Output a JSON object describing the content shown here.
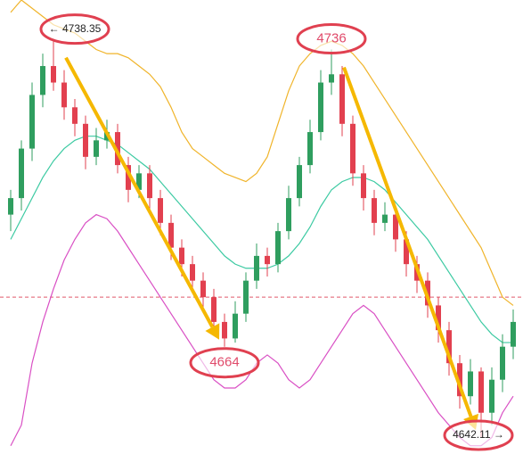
{
  "chart_data": {
    "type": "candlestick",
    "ylim": [
      4638,
      4748
    ],
    "open": [
      4696,
      4700,
      4712,
      4725,
      4732,
      4728,
      4722,
      4718,
      4710,
      4714,
      4716,
      4708,
      4702,
      4706,
      4700,
      4694,
      4688,
      4684,
      4680,
      4676,
      4670,
      4666,
      4672,
      4680,
      4686,
      4684,
      4692,
      4700,
      4708,
      4716,
      4728,
      4730,
      4718,
      4706,
      4700,
      4694,
      4696,
      4690,
      4684,
      4680,
      4674,
      4668,
      4660,
      4652,
      4658,
      4648,
      4656,
      4664
    ],
    "high": [
      4702,
      4714,
      4728,
      4735,
      4738.35,
      4731,
      4724,
      4720,
      4717,
      4719,
      4718,
      4710,
      4708,
      4708,
      4702,
      4696,
      4690,
      4686,
      4682,
      4678,
      4672,
      4675,
      4682,
      4689,
      4688,
      4694,
      4703,
      4710,
      4719,
      4731,
      4736,
      4732,
      4720,
      4708,
      4702,
      4699,
      4698,
      4692,
      4686,
      4682,
      4676,
      4670,
      4662,
      4661,
      4659,
      4659,
      4667,
      4673
    ],
    "low": [
      4692,
      4697,
      4709,
      4722,
      4726,
      4719,
      4715,
      4707,
      4708,
      4712,
      4706,
      4699,
      4700,
      4697,
      4691,
      4685,
      4681,
      4677,
      4673,
      4667,
      4664,
      4665,
      4670,
      4678,
      4681,
      4682,
      4690,
      4698,
      4706,
      4714,
      4725,
      4715,
      4703,
      4697,
      4691,
      4692,
      4687,
      4681,
      4677,
      4671,
      4665,
      4657,
      4649,
      4650,
      4642.11,
      4645,
      4653,
      4661
    ],
    "close": [
      4700,
      4712,
      4725,
      4732,
      4728,
      4722,
      4718,
      4710,
      4714,
      4716,
      4708,
      4702,
      4706,
      4700,
      4694,
      4688,
      4684,
      4680,
      4676,
      4670,
      4666,
      4672,
      4680,
      4686,
      4684,
      4692,
      4700,
      4708,
      4716,
      4728,
      4730,
      4718,
      4706,
      4700,
      4694,
      4696,
      4690,
      4684,
      4680,
      4674,
      4668,
      4660,
      4652,
      4658,
      4648,
      4656,
      4664,
      4670
    ],
    "up_color": "#2f9e5f",
    "down_color": "#e2404f",
    "bands": [
      {
        "color": "#f0b42a",
        "values": [
          4745,
          4748,
          4746,
          4744,
          4742,
          4741,
          4740,
          4738,
          4736,
          4735,
          4735,
          4734,
          4732,
          4730,
          4727,
          4722,
          4716,
          4712,
          4710,
          4708,
          4706,
          4705,
          4704,
          4706,
          4710,
          4718,
          4726,
          4732,
          4735,
          4737,
          4738,
          4737,
          4735,
          4732,
          4728,
          4724,
          4720,
          4716,
          4712,
          4708,
          4704,
          4700,
          4696,
          4692,
          4688,
          4682,
          4676,
          4674
        ]
      },
      {
        "color": "#3ccaa2",
        "values": [
          4690,
          4695,
          4700,
          4705,
          4709,
          4712,
          4714,
          4715,
          4715,
          4714,
          4713,
          4711,
          4709,
          4707,
          4704,
          4701,
          4698,
          4695,
          4692,
          4689,
          4686,
          4684,
          4683,
          4683,
          4683,
          4684,
          4686,
          4689,
          4693,
          4698,
          4702,
          4704,
          4705,
          4705,
          4704,
          4702,
          4699,
          4696,
          4693,
          4690,
          4686,
          4682,
          4678,
          4674,
          4670,
          4667,
          4665,
          4665
        ]
      },
      {
        "color": "#d94fc4",
        "values": [
          4640,
          4645,
          4660,
          4670,
          4678,
          4685,
          4690,
          4694,
          4696,
          4695,
          4692,
          4688,
          4684,
          4680,
          4676,
          4672,
          4668,
          4664,
          4660,
          4656,
          4654,
          4654,
          4656,
          4660,
          4662,
          4660,
          4656,
          4654,
          4656,
          4660,
          4664,
          4668,
          4672,
          4674,
          4672,
          4668,
          4664,
          4660,
          4656,
          4652,
          4648,
          4645,
          4642,
          4640,
          4640,
          4642,
          4648,
          4652
        ]
      }
    ],
    "reference_line": 4676,
    "annotations": [
      {
        "value": 4738.35,
        "label": "← 4738.35"
      },
      {
        "value": 4736,
        "label": "4736"
      },
      {
        "value": 4664,
        "label": "4664"
      },
      {
        "value": 4642.11,
        "label": "4642.11 →"
      }
    ]
  }
}
